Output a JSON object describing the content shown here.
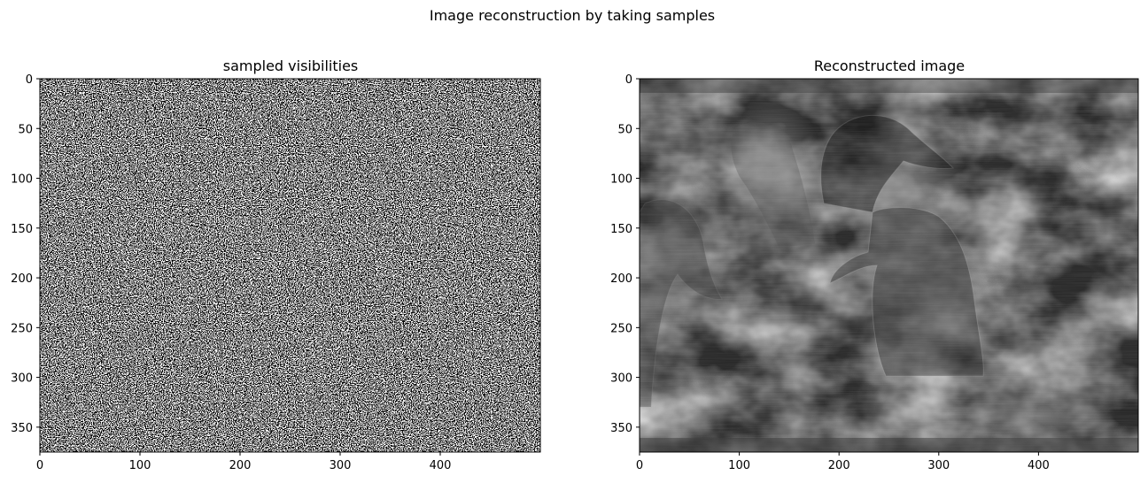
{
  "figure": {
    "suptitle": "Image reconstruction by taking samples"
  },
  "chart_data": [
    {
      "type": "heatmap",
      "colormap": "gray",
      "title": "sampled visibilities",
      "image_width": 500,
      "image_height": 375,
      "xlim": [
        0,
        500
      ],
      "ylim": [
        375,
        0
      ],
      "xticks": [
        0,
        100,
        200,
        300,
        400
      ],
      "yticks": [
        0,
        50,
        100,
        150,
        200,
        250,
        300,
        350
      ],
      "content": "binary random sampling mask (white = sampled, black = not sampled), roughly half the pixels sampled"
    },
    {
      "type": "heatmap",
      "colormap": "gray",
      "title": "Reconstructed image",
      "image_width": 500,
      "image_height": 375,
      "xlim": [
        0,
        500
      ],
      "ylim": [
        375,
        0
      ],
      "xticks": [
        0,
        100,
        200,
        300,
        400
      ],
      "yticks": [
        0,
        50,
        100,
        150,
        200,
        250,
        300,
        350
      ],
      "content": "noisy grayscale reconstruction of a photo of ducks"
    }
  ]
}
